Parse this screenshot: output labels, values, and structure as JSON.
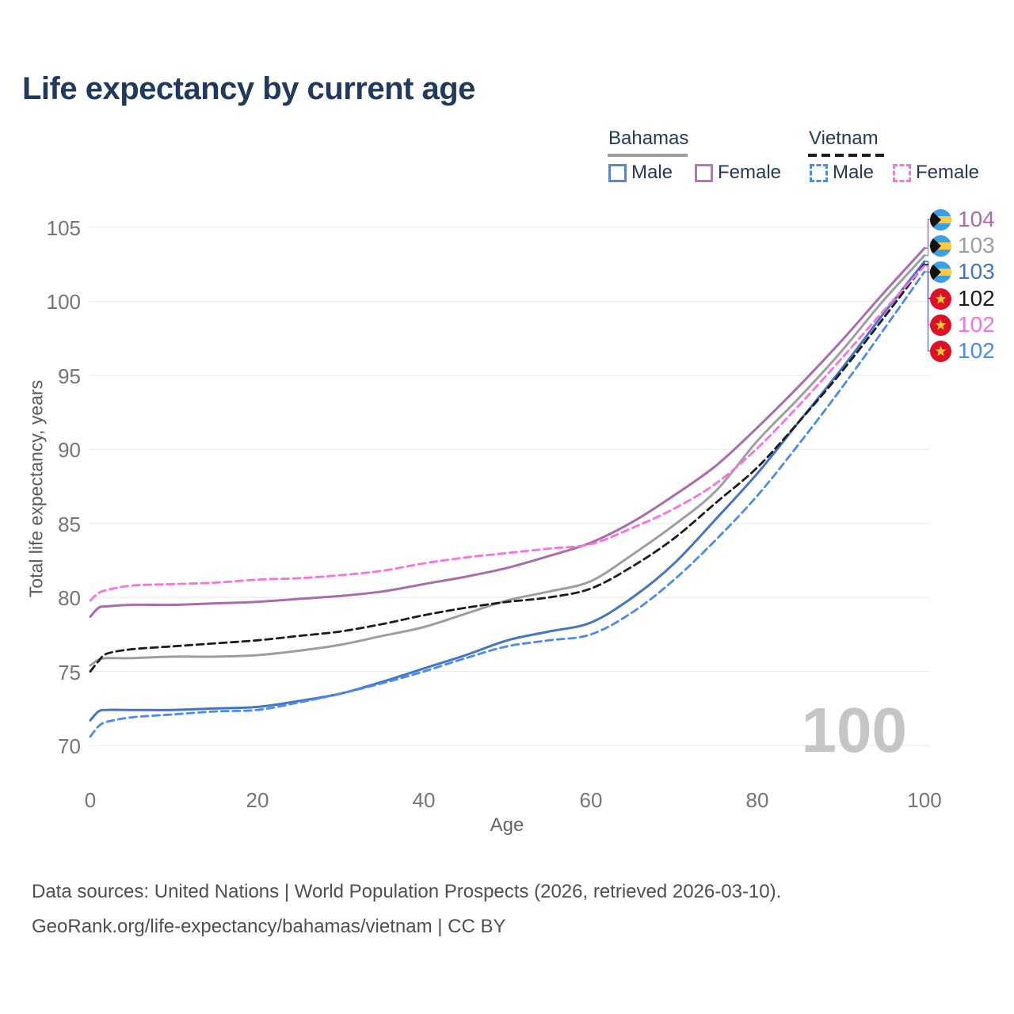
{
  "title": "Life expectancy by current age",
  "legend": {
    "groups": [
      {
        "country": "Bahamas",
        "line_style": "solid",
        "swatch_color": "#9e9e9e",
        "items": [
          {
            "label": "Male",
            "color": "#4374c6",
            "dashed": false
          },
          {
            "label": "Female",
            "color": "#b578b6",
            "dashed": false
          }
        ]
      },
      {
        "country": "Vietnam",
        "line_style": "dashed",
        "swatch_color": "#1c1c1c",
        "items": [
          {
            "label": "Male",
            "color": "#4b8bf0",
            "dashed": true
          },
          {
            "label": "Female",
            "color": "#fd70da",
            "dashed": true
          }
        ]
      }
    ]
  },
  "y_axis": {
    "title": "Total life expectancy, years"
  },
  "x_axis": {
    "title": "Age"
  },
  "watermark": "100",
  "end_labels": [
    {
      "text": "104",
      "color": "#aa6bac",
      "flag": "bahamas"
    },
    {
      "text": "103",
      "color": "#9e9e9e",
      "flag": "bahamas"
    },
    {
      "text": "103",
      "color": "#4374c6",
      "flag": "bahamas"
    },
    {
      "text": "102",
      "color": "#1c1c1c",
      "flag": "vietnam"
    },
    {
      "text": "102",
      "color": "#fd70da",
      "flag": "vietnam"
    },
    {
      "text": "102",
      "color": "#4b8bf0",
      "flag": "vietnam"
    }
  ],
  "footer": {
    "line1": "Data sources: United Nations | World Population Prospects (2026, retrieved 2026-03-10).",
    "line2": "GeoRank.org/life-expectancy/bahamas/vietnam | CC BY"
  },
  "chart_data": {
    "type": "line",
    "title": "Life expectancy by current age",
    "xlabel": "Age",
    "ylabel": "Total life expectancy, years",
    "xlim": [
      0,
      100
    ],
    "ylim": [
      69,
      106
    ],
    "xticks": [
      0,
      20,
      40,
      60,
      80,
      100
    ],
    "yticks": [
      70,
      75,
      80,
      85,
      90,
      95,
      100,
      105
    ],
    "grid": "horizontal",
    "legend_position": "top-right",
    "x": [
      0,
      1,
      2,
      5,
      10,
      15,
      20,
      25,
      30,
      35,
      40,
      45,
      50,
      55,
      60,
      65,
      70,
      75,
      80,
      85,
      90,
      95,
      100
    ],
    "series": [
      {
        "name": "Bahamas Female",
        "country": "Bahamas",
        "sex": "Female",
        "style": "solid",
        "color": "#aa6bac",
        "end_label": "104",
        "label_row": 0,
        "values": [
          78.7,
          79.3,
          79.4,
          79.5,
          79.5,
          79.6,
          79.7,
          79.9,
          80.1,
          80.4,
          80.9,
          81.4,
          82.0,
          82.8,
          83.7,
          85.1,
          86.9,
          88.9,
          91.5,
          94.3,
          97.3,
          100.5,
          103.6
        ]
      },
      {
        "name": "Bahamas Both sexes",
        "country": "Bahamas",
        "sex": "Both",
        "style": "solid",
        "color": "#9e9e9e",
        "end_label": "103",
        "label_row": 1,
        "values": [
          75.4,
          75.8,
          75.9,
          75.9,
          76.0,
          76.0,
          76.1,
          76.4,
          76.8,
          77.4,
          78.0,
          78.9,
          79.8,
          80.4,
          81.1,
          82.9,
          84.9,
          87.2,
          90.6,
          93.5,
          96.6,
          100.0,
          103.1
        ]
      },
      {
        "name": "Bahamas Male",
        "country": "Bahamas",
        "sex": "Male",
        "style": "solid",
        "color": "#4374c6",
        "end_label": "103",
        "label_row": 2,
        "values": [
          71.7,
          72.3,
          72.4,
          72.4,
          72.4,
          72.5,
          72.6,
          73.0,
          73.5,
          74.3,
          75.2,
          76.1,
          77.1,
          77.7,
          78.3,
          80.0,
          82.3,
          85.3,
          88.4,
          91.9,
          95.4,
          99.1,
          102.7
        ]
      },
      {
        "name": "Vietnam Both sexes",
        "country": "Vietnam",
        "sex": "Both",
        "style": "dashed",
        "color": "#1c1c1c",
        "end_label": "102",
        "label_row": 3,
        "values": [
          75.0,
          75.7,
          76.2,
          76.5,
          76.7,
          76.9,
          77.1,
          77.4,
          77.7,
          78.2,
          78.8,
          79.3,
          79.7,
          80.0,
          80.6,
          82.1,
          84.0,
          86.4,
          88.8,
          91.9,
          95.2,
          98.8,
          102.5
        ]
      },
      {
        "name": "Vietnam Female",
        "country": "Vietnam",
        "sex": "Female",
        "style": "dashed",
        "color": "#fd70da",
        "end_label": "102",
        "label_row": 4,
        "values": [
          79.8,
          80.3,
          80.5,
          80.8,
          80.9,
          81.0,
          81.2,
          81.3,
          81.5,
          81.8,
          82.3,
          82.7,
          83.0,
          83.3,
          83.6,
          84.7,
          86.0,
          87.7,
          90.1,
          93.0,
          96.1,
          99.3,
          102.4
        ]
      },
      {
        "name": "Vietnam Male",
        "country": "Vietnam",
        "sex": "Male",
        "style": "dashed",
        "color": "#4b8bf0",
        "end_label": "102",
        "label_row": 5,
        "values": [
          70.6,
          71.3,
          71.6,
          71.9,
          72.1,
          72.3,
          72.4,
          72.9,
          73.5,
          74.2,
          75.0,
          75.9,
          76.7,
          77.1,
          77.5,
          79.0,
          81.2,
          83.9,
          86.9,
          90.4,
          94.1,
          98.0,
          102.0
        ]
      }
    ]
  }
}
